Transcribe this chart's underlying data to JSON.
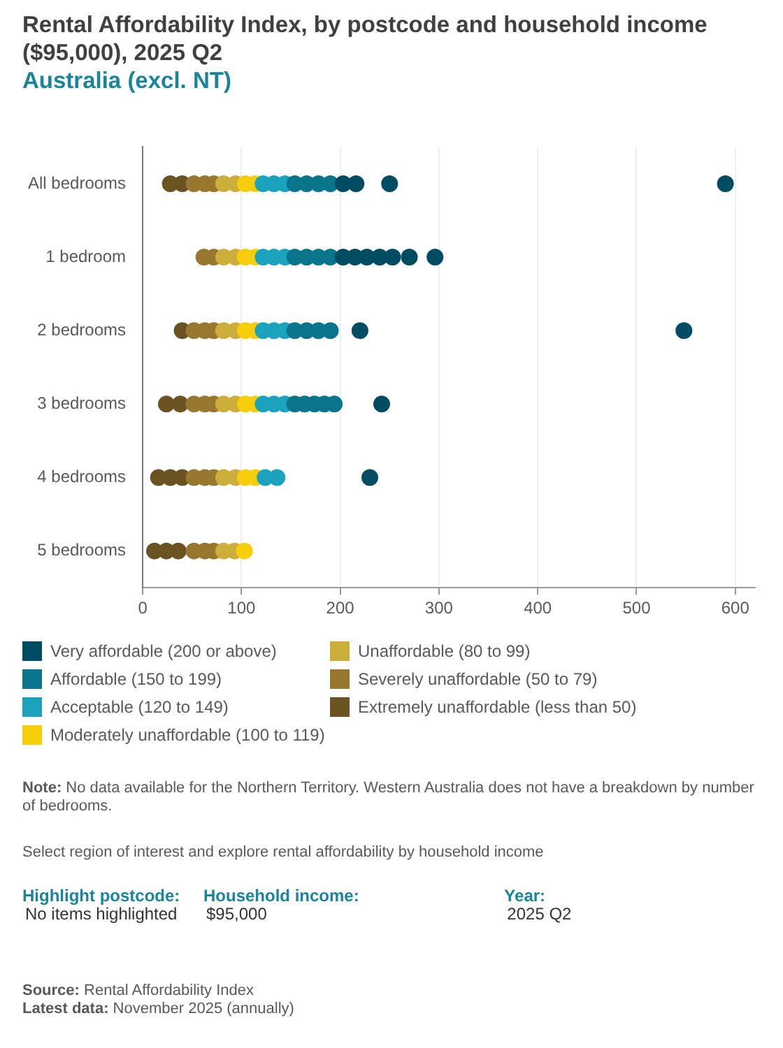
{
  "chart_data": {
    "type": "scatter",
    "orientation": "horizontal",
    "title": "Rental Affordability Index, by postcode and household income ($95,000), 2025 Q2",
    "subtitle": "Australia (excl. NT)",
    "categories": [
      "All bedrooms",
      "1 bedroom",
      "2 bedrooms",
      "3 bedrooms",
      "4 bedrooms",
      "5 bedrooms"
    ],
    "xlim": [
      0,
      620
    ],
    "xticks": [
      0,
      100,
      200,
      300,
      400,
      500,
      600
    ],
    "grid": "x",
    "legend": "bottom",
    "marker": "circle",
    "series": [
      {
        "name": "Very affordable (200 or above)",
        "color": "#004c63",
        "x": [
          "All bedrooms",
          "All bedrooms",
          "All bedrooms",
          "All bedrooms",
          "1 bedroom",
          "1 bedroom",
          "1 bedroom",
          "1 bedroom",
          "1 bedroom",
          "1 bedroom",
          "1 bedroom",
          "2 bedrooms",
          "2 bedrooms",
          "3 bedrooms",
          "4 bedrooms"
        ],
        "values": [
          203,
          216,
          250,
          590,
          203,
          215,
          227,
          240,
          253,
          270,
          296,
          220,
          548,
          242,
          230
        ]
      },
      {
        "name": "Affordable (150 to 199)",
        "color": "#08758c",
        "x": [
          "All bedrooms",
          "All bedrooms",
          "All bedrooms",
          "All bedrooms",
          "1 bedroom",
          "1 bedroom",
          "1 bedroom",
          "1 bedroom",
          "2 bedrooms",
          "2 bedrooms",
          "2 bedrooms",
          "2 bedrooms",
          "3 bedrooms",
          "3 bedrooms",
          "3 bedrooms",
          "3 bedrooms",
          "3 bedrooms"
        ],
        "values": [
          154,
          166,
          178,
          190,
          154,
          166,
          178,
          190,
          154,
          166,
          178,
          190,
          154,
          164,
          174,
          184,
          194
        ]
      },
      {
        "name": "Acceptable (120 to 149)",
        "color": "#1ba3bd",
        "x": [
          "All bedrooms",
          "All bedrooms",
          "All bedrooms",
          "1 bedroom",
          "1 bedroom",
          "1 bedroom",
          "2 bedrooms",
          "2 bedrooms",
          "2 bedrooms",
          "3 bedrooms",
          "3 bedrooms",
          "3 bedrooms",
          "4 bedrooms",
          "4 bedrooms"
        ],
        "values": [
          122,
          133,
          144,
          122,
          133,
          144,
          122,
          133,
          144,
          122,
          133,
          144,
          124,
          136
        ]
      },
      {
        "name": "Moderately unaffordable (100 to 119)",
        "color": "#f6ce0c",
        "x": [
          "All bedrooms",
          "All bedrooms",
          "1 bedroom",
          "1 bedroom",
          "2 bedrooms",
          "2 bedrooms",
          "3 bedrooms",
          "3 bedrooms",
          "4 bedrooms",
          "4 bedrooms",
          "5 bedrooms"
        ],
        "values": [
          104,
          114,
          104,
          114,
          104,
          114,
          104,
          114,
          104,
          114,
          103
        ]
      },
      {
        "name": "Unaffordable (80 to 99)",
        "color": "#cdae3a",
        "x": [
          "All bedrooms",
          "All bedrooms",
          "1 bedroom",
          "1 bedroom",
          "2 bedrooms",
          "2 bedrooms",
          "3 bedrooms",
          "3 bedrooms",
          "4 bedrooms",
          "4 bedrooms",
          "5 bedrooms",
          "5 bedrooms"
        ],
        "values": [
          82,
          94,
          82,
          94,
          82,
          94,
          82,
          94,
          82,
          94,
          82,
          93
        ]
      },
      {
        "name": "Severely unaffordable (50 to 79)",
        "color": "#98782e",
        "x": [
          "All bedrooms",
          "All bedrooms",
          "All bedrooms",
          "1 bedroom",
          "1 bedroom",
          "2 bedrooms",
          "2 bedrooms",
          "2 bedrooms",
          "3 bedrooms",
          "3 bedrooms",
          "3 bedrooms",
          "4 bedrooms",
          "4 bedrooms",
          "4 bedrooms",
          "5 bedrooms",
          "5 bedrooms",
          "5 bedrooms"
        ],
        "values": [
          52,
          63,
          72,
          62,
          72,
          52,
          63,
          72,
          52,
          63,
          72,
          52,
          63,
          72,
          52,
          63,
          72
        ]
      },
      {
        "name": "Extremely unaffordable (less than 50)",
        "color": "#6b5321",
        "x": [
          "All bedrooms",
          "All bedrooms",
          "2 bedrooms",
          "3 bedrooms",
          "3 bedrooms",
          "4 bedrooms",
          "4 bedrooms",
          "4 bedrooms",
          "5 bedrooms",
          "5 bedrooms",
          "5 bedrooms"
        ],
        "values": [
          28,
          40,
          40,
          24,
          38,
          16,
          28,
          40,
          12,
          24,
          36
        ]
      }
    ],
    "annotations": [
      "Note: No data available for the Northern Territory. Western Australia does not have a breakdown by number of bedrooms.",
      "Select region of interest and explore rental affordability by household income",
      "Highlight postcode:",
      "No items highlighted",
      "Household income:",
      "$95,000",
      "Year:",
      "2025 Q2",
      "Source: Rental Affordability Index",
      "Latest data: November 2025 (annually)"
    ]
  }
}
